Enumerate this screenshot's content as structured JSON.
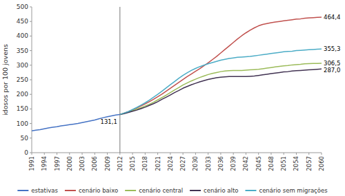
{
  "chart_data": {
    "type": "line",
    "title": "",
    "ylabel": "idosos por 100 jovens",
    "xlim": [
      1991,
      2060
    ],
    "ylim": [
      0,
      500
    ],
    "yticks": [
      0,
      50,
      100,
      150,
      200,
      250,
      300,
      350,
      400,
      450,
      500
    ],
    "xticks": [
      1991,
      1994,
      1997,
      2000,
      2003,
      2006,
      2009,
      2012,
      2015,
      2018,
      2021,
      2024,
      2027,
      2030,
      2033,
      2036,
      2039,
      2042,
      2045,
      2048,
      2051,
      2054,
      2057,
      2060
    ],
    "grid": false,
    "legend": "bottom",
    "vline": 2012,
    "series": [
      {
        "name": "estativas",
        "color": "#4472C4",
        "x": [
          1991,
          1992,
          1993,
          1994,
          1995,
          1996,
          1997,
          1998,
          1999,
          2000,
          2001,
          2002,
          2003,
          2004,
          2005,
          2006,
          2007,
          2008,
          2009,
          2010,
          2011,
          2012
        ],
        "values": [
          75,
          77,
          79,
          82,
          85,
          87,
          89,
          92,
          94,
          96,
          98,
          100,
          103,
          106,
          109,
          112,
          116,
          120,
          123,
          126,
          129,
          131.1
        ]
      },
      {
        "name": "cenário baixo",
        "color": "#C0504D",
        "x": [
          2012,
          2013,
          2014,
          2015,
          2016,
          2017,
          2018,
          2019,
          2020,
          2021,
          2022,
          2023,
          2024,
          2025,
          2026,
          2027,
          2028,
          2029,
          2030,
          2031,
          2032,
          2033,
          2034,
          2035,
          2036,
          2037,
          2038,
          2039,
          2040,
          2041,
          2042,
          2043,
          2044,
          2045,
          2046,
          2047,
          2048,
          2049,
          2050,
          2051,
          2052,
          2053,
          2054,
          2055,
          2056,
          2057,
          2058,
          2059,
          2060
        ],
        "values": [
          131.1,
          136,
          141,
          147,
          153,
          160,
          167,
          175,
          183,
          192,
          201,
          211,
          221,
          231,
          241,
          251,
          261,
          270,
          279,
          288,
          298,
          308,
          319,
          330,
          342,
          354,
          366,
          378,
          390,
          401,
          411,
          420,
          428,
          435,
          440,
          443,
          446,
          448,
          450,
          452,
          454,
          456,
          458,
          459,
          461,
          462,
          463,
          463.8,
          464.4
        ]
      },
      {
        "name": "cenário central",
        "color": "#9BBB59",
        "x": [
          2012,
          2013,
          2014,
          2015,
          2016,
          2017,
          2018,
          2019,
          2020,
          2021,
          2022,
          2023,
          2024,
          2025,
          2026,
          2027,
          2028,
          2029,
          2030,
          2031,
          2032,
          2033,
          2034,
          2035,
          2036,
          2037,
          2038,
          2039,
          2040,
          2041,
          2042,
          2043,
          2044,
          2045,
          2046,
          2047,
          2048,
          2049,
          2050,
          2051,
          2052,
          2053,
          2054,
          2055,
          2056,
          2057,
          2058,
          2059,
          2060
        ],
        "values": [
          131.1,
          135,
          139,
          144,
          149,
          154,
          160,
          166,
          173,
          181,
          189,
          197,
          206,
          215,
          223,
          232,
          239,
          246,
          252,
          258,
          263,
          268,
          272,
          275,
          278,
          280,
          281,
          282,
          282,
          282,
          283,
          284,
          285,
          286,
          288,
          290,
          292,
          294,
          296,
          298,
          299,
          301,
          302,
          303,
          305,
          305.5,
          306,
          306.3,
          306.5
        ]
      },
      {
        "name": "cenário alto",
        "color": "#403151",
        "x": [
          2012,
          2013,
          2014,
          2015,
          2016,
          2017,
          2018,
          2019,
          2020,
          2021,
          2022,
          2023,
          2024,
          2025,
          2026,
          2027,
          2028,
          2029,
          2030,
          2031,
          2032,
          2033,
          2034,
          2035,
          2036,
          2037,
          2038,
          2039,
          2040,
          2041,
          2042,
          2043,
          2044,
          2045,
          2046,
          2047,
          2048,
          2049,
          2050,
          2051,
          2052,
          2053,
          2054,
          2055,
          2056,
          2057,
          2058,
          2059,
          2060
        ],
        "values": [
          131.1,
          134,
          138,
          142,
          146,
          151,
          156,
          162,
          168,
          175,
          183,
          190,
          198,
          206,
          213,
          221,
          227,
          233,
          238,
          243,
          247,
          251,
          254,
          257,
          259,
          260,
          261,
          261,
          261,
          261,
          261,
          262,
          263,
          265,
          267,
          269,
          271,
          273,
          275,
          277,
          278,
          280,
          281,
          282,
          283,
          284,
          285,
          286,
          287.0
        ]
      },
      {
        "name": "cenário sem migrações",
        "color": "#4BACC6",
        "x": [
          2012,
          2013,
          2014,
          2015,
          2016,
          2017,
          2018,
          2019,
          2020,
          2021,
          2022,
          2023,
          2024,
          2025,
          2026,
          2027,
          2028,
          2029,
          2030,
          2031,
          2032,
          2033,
          2034,
          2035,
          2036,
          2037,
          2038,
          2039,
          2040,
          2041,
          2042,
          2043,
          2044,
          2045,
          2046,
          2047,
          2048,
          2049,
          2050,
          2051,
          2052,
          2053,
          2054,
          2055,
          2056,
          2057,
          2058,
          2059,
          2060
        ],
        "values": [
          131.1,
          136,
          141,
          148,
          155,
          163,
          171,
          180,
          190,
          200,
          211,
          222,
          233,
          244,
          255,
          265,
          274,
          282,
          289,
          295,
          300,
          305,
          309,
          313,
          317,
          320,
          323,
          325,
          327,
          328,
          329,
          330,
          332,
          334,
          336,
          338,
          340,
          342,
          344,
          346,
          347,
          348,
          350,
          351,
          352,
          353,
          354,
          354.8,
          355.3
        ]
      }
    ],
    "annotations": [
      {
        "text": "131,1",
        "x": 2012,
        "value": 131.1
      },
      {
        "text": "464,4",
        "x": 2060,
        "value": 464.4
      },
      {
        "text": "355,3",
        "x": 2060,
        "value": 355.3
      },
      {
        "text": "306,5",
        "x": 2060,
        "value": 306.5
      },
      {
        "text": "287,0",
        "x": 2060,
        "value": 287.0
      }
    ]
  }
}
